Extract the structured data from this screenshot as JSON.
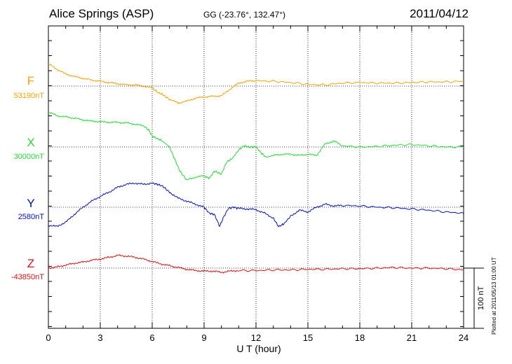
{
  "header": {
    "station": "Alice Springs (ASP)",
    "coords": "GG (-23.76°, 132.47°)",
    "date": "2011/04/12"
  },
  "footer": {
    "plotted": "Plotted at 2011/05/13 01:00 UT",
    "scale_label": "100 nT"
  },
  "chart_data": {
    "type": "line",
    "xlabel": "U T (hour)",
    "xlim": [
      0,
      24
    ],
    "xticks": [
      "0",
      "3",
      "6",
      "9",
      "12",
      "15",
      "18",
      "21",
      "24"
    ],
    "scale_bar_nT": 100,
    "grid": "dotted",
    "series": [
      {
        "name": "F",
        "baseline": "53190nT",
        "color": "#f5a300",
        "x": [
          0,
          0.5,
          1,
          1.5,
          2,
          2.5,
          3,
          3.5,
          4,
          4.5,
          5,
          5.5,
          6,
          6.3,
          6.6,
          7,
          7.5,
          8,
          8.5,
          9,
          9.5,
          10,
          10.5,
          11,
          11.5,
          12,
          13,
          14,
          15,
          16,
          17,
          18,
          19,
          20,
          21,
          22,
          23,
          24
        ],
        "y": [
          37,
          28,
          20,
          16,
          13,
          10,
          8,
          6,
          4,
          2,
          2,
          0,
          -3,
          -10,
          -14,
          -22,
          -28,
          -25,
          -20,
          -18,
          -17,
          -16,
          -5,
          5,
          8,
          9,
          8,
          6,
          3,
          2,
          5,
          6,
          5,
          5,
          6,
          7,
          7,
          8
        ]
      },
      {
        "name": "X",
        "baseline": "30000nT",
        "color": "#22dd33",
        "x": [
          0,
          0.5,
          1,
          1.5,
          2,
          2.5,
          3,
          3.5,
          4,
          4.5,
          5,
          5.5,
          5.8,
          6,
          6.3,
          6.6,
          7,
          7.3,
          7.6,
          8,
          8.5,
          9,
          9.3,
          9.6,
          10,
          10.3,
          10.6,
          11,
          11.3,
          11.6,
          12,
          12.3,
          12.6,
          13,
          13.5,
          14,
          14.5,
          15,
          15.5,
          16,
          16.5,
          17,
          18,
          19,
          20,
          21,
          22,
          23,
          24
        ],
        "y": [
          58,
          52,
          50,
          48,
          45,
          43,
          42,
          41,
          41,
          40,
          38,
          35,
          28,
          18,
          14,
          10,
          0,
          -20,
          -40,
          -55,
          -50,
          -48,
          -52,
          -40,
          -45,
          -25,
          -20,
          -5,
          2,
          0,
          0,
          -10,
          -17,
          -14,
          -12,
          -12,
          -14,
          -12,
          -14,
          5,
          10,
          2,
          0,
          1,
          3,
          4,
          2,
          0,
          0
        ]
      },
      {
        "name": "Y",
        "baseline": "2580nT",
        "color": "#0011cc",
        "x": [
          0,
          0.5,
          1,
          1.5,
          2,
          2.5,
          3,
          3.5,
          4,
          4.5,
          5,
          5.5,
          6,
          6.3,
          6.6,
          7,
          7.5,
          8,
          8.5,
          9,
          9.3,
          9.6,
          9.9,
          10.1,
          10.4,
          10.7,
          11,
          11.5,
          12,
          12.5,
          13,
          13.3,
          13.6,
          14,
          14.5,
          15,
          15.5,
          16,
          16.5,
          17,
          18,
          19,
          20,
          21,
          22,
          23,
          24
        ],
        "y": [
          -30,
          -32,
          -25,
          -12,
          0,
          10,
          18,
          25,
          33,
          38,
          40,
          38,
          40,
          38,
          35,
          25,
          15,
          10,
          5,
          0,
          -10,
          -12,
          -32,
          -18,
          -2,
          0,
          -2,
          -3,
          -4,
          -10,
          -18,
          -32,
          -28,
          -15,
          -5,
          -8,
          0,
          5,
          2,
          3,
          2,
          0,
          -1,
          -3,
          -5,
          -8,
          -10
        ]
      },
      {
        "name": "Z",
        "baseline": "-43850nT",
        "color": "#dd1111",
        "x": [
          0,
          0.5,
          1,
          1.5,
          2,
          2.5,
          3,
          3.5,
          4,
          4.5,
          5,
          5.5,
          6,
          6.5,
          7,
          7.5,
          8,
          8.5,
          9,
          9.5,
          10,
          10.5,
          11,
          12,
          13,
          14,
          15,
          16,
          17,
          18,
          19,
          20,
          21,
          22,
          23,
          24
        ],
        "y": [
          0,
          2,
          5,
          8,
          10,
          13,
          15,
          18,
          21,
          20,
          18,
          15,
          11,
          7,
          4,
          1,
          -2,
          -4,
          -5,
          -5,
          -7,
          -5,
          -4,
          -4,
          -3,
          -3,
          -2,
          -2,
          -1,
          -1,
          0,
          1,
          0,
          0,
          -1,
          -3
        ]
      }
    ]
  }
}
